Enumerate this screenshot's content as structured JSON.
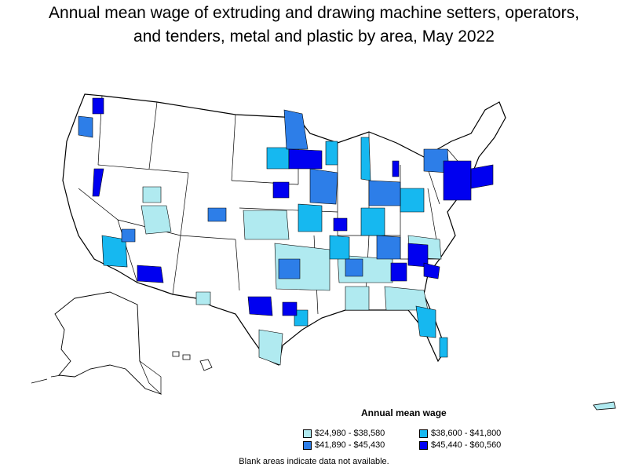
{
  "title": {
    "line1": "Annual mean wage of extruding and drawing machine setters, operators,",
    "line2": "and tenders, metal and plastic by area, May 2022"
  },
  "legend": {
    "title": "Annual mean wage",
    "items": [
      {
        "label": "$24,980 - $38,580",
        "color": "#b0eaf0"
      },
      {
        "label": "$38,600 - $41,800",
        "color": "#16b8f0"
      },
      {
        "label": "$41,890 - $45,430",
        "color": "#2d7ee8"
      },
      {
        "label": "$45,440 - $60,560",
        "color": "#0000f0"
      }
    ]
  },
  "note": "Blank areas indicate data not available.",
  "colors": {
    "no_data": "#ffffff",
    "boundary": "#000000"
  }
}
